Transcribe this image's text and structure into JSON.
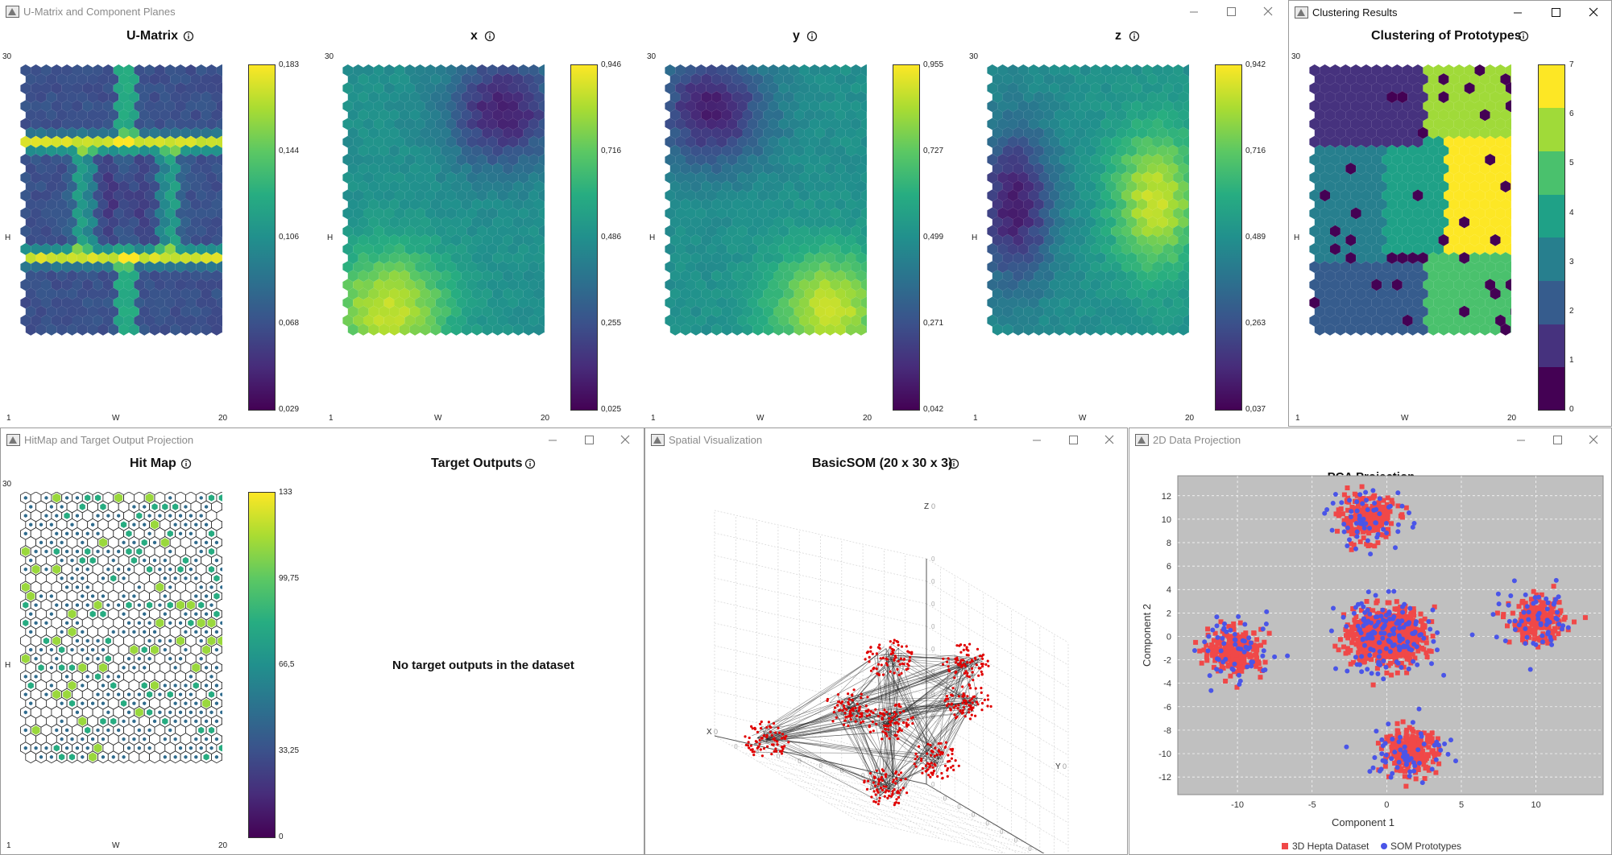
{
  "colors": {
    "viridis": [
      "#440154",
      "#472c7a",
      "#3b518b",
      "#2c718e",
      "#21908d",
      "#27ad81",
      "#5cc863",
      "#aadc32",
      "#fde725"
    ],
    "cluster": [
      "#440154",
      "#46327e",
      "#365c8d",
      "#277f8e",
      "#1fa187",
      "#4ac16d",
      "#a0da39",
      "#fde725"
    ],
    "proj_bg": "#c0c0c0",
    "red": "#f04848",
    "blue": "#4a55e8"
  },
  "windows": {
    "umatrix": {
      "title": "U-Matrix and Component Planes"
    },
    "clustering": {
      "title": "Clustering Results"
    },
    "hitmap": {
      "title": "HitMap and Target Output Projection"
    },
    "spatial": {
      "title": "Spatial Visualization"
    },
    "projection": {
      "title": "2D Data Projection"
    }
  },
  "planes": [
    {
      "title": "U-Matrix",
      "ticks": [
        "0,183",
        "0,144",
        "0,106",
        "0,068",
        "0,029"
      ]
    },
    {
      "title": "x",
      "ticks": [
        "0,946",
        "0,716",
        "0,486",
        "0,255",
        "0,025"
      ]
    },
    {
      "title": "y",
      "ticks": [
        "0,955",
        "0,727",
        "0,499",
        "0,271",
        "0,042"
      ]
    },
    {
      "title": "z",
      "ticks": [
        "0,942",
        "0,716",
        "0,489",
        "0,263",
        "0,037"
      ]
    }
  ],
  "clustering": {
    "title": "Clustering of Prototypes",
    "ticks": [
      "7",
      "6",
      "5",
      "4",
      "3",
      "2",
      "1",
      "0"
    ]
  },
  "hitmap": {
    "title": "Hit Map",
    "ticks": [
      "133",
      "99,75",
      "66,5",
      "33,25",
      "0"
    ]
  },
  "axes": {
    "top": "30",
    "h": "H",
    "left": "1",
    "w": "W",
    "right": "20"
  },
  "target": {
    "title": "Target Outputs",
    "message": "No target outputs in the dataset"
  },
  "spatial": {
    "title": "BasicSOM (20 x 30 x 3)",
    "x_label": "X",
    "y_label": "Y",
    "z_label": "Z",
    "zero": "0",
    "z_ticks": [
      "0",
      "0",
      "0",
      "0",
      "0",
      "0",
      "0",
      "0",
      "0",
      "0",
      "0"
    ]
  },
  "chart_data": {
    "type": "scatter",
    "title": "PCA Projection",
    "xlabel": "Component 1",
    "ylabel": "Component 2",
    "xlim": [
      -14,
      14.5
    ],
    "ylim": [
      -13.5,
      13.7
    ],
    "x_ticks": [
      -10,
      -5,
      0,
      5,
      10
    ],
    "y_ticks": [
      12,
      10,
      8,
      6,
      4,
      2,
      0,
      -2,
      -4,
      -6,
      -8,
      -10,
      -12
    ],
    "grid": true,
    "legend_position": "bottom",
    "series": [
      {
        "name": "3D Hepta Dataset",
        "color": "#f04848",
        "marker": "square",
        "clusters": [
          {
            "cx": 0,
            "cy": 0,
            "sd": 1.1,
            "n": 900
          },
          {
            "cx": -1.3,
            "cy": 10.1,
            "sd": 0.9,
            "n": 240
          },
          {
            "cx": 1.6,
            "cy": -9.8,
            "sd": 0.9,
            "n": 240
          },
          {
            "cx": -10.1,
            "cy": -1.3,
            "sd": 0.9,
            "n": 240
          },
          {
            "cx": 10.1,
            "cy": 1.3,
            "sd": 0.9,
            "n": 240
          }
        ]
      },
      {
        "name": "SOM Prototypes",
        "color": "#4a55e8",
        "marker": "circle",
        "clusters": [
          {
            "cx": 0,
            "cy": 0,
            "sd": 1.6,
            "n": 150
          },
          {
            "cx": -1.3,
            "cy": 10.1,
            "sd": 1.4,
            "n": 60
          },
          {
            "cx": 1.6,
            "cy": -9.8,
            "sd": 1.4,
            "n": 60
          },
          {
            "cx": -10.1,
            "cy": -1.3,
            "sd": 1.4,
            "n": 60
          },
          {
            "cx": 10.1,
            "cy": 1.3,
            "sd": 1.4,
            "n": 60
          }
        ]
      }
    ]
  }
}
